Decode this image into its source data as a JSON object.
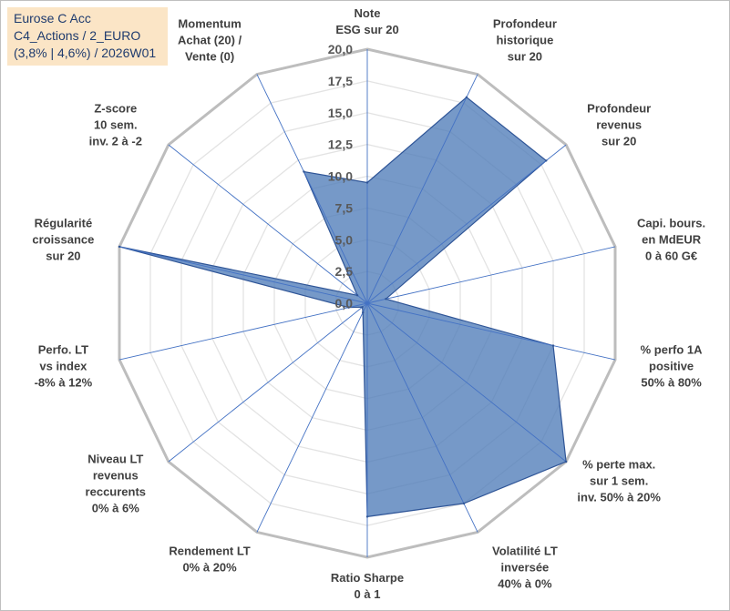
{
  "info_box": {
    "line1": "Eurose C Acc",
    "line2": "C4_Actions / 2_EURO",
    "line3": "(3,8% | 4,6%) / 2026W01"
  },
  "colors": {
    "series_fill": "#4f7cb8",
    "series_stroke": "#2f5597",
    "grid": "#c8c8c8",
    "spoke": "#4472c4",
    "info_box_bg": "#fbe5c6"
  },
  "chart_data": {
    "type": "radar",
    "title": "",
    "rmin": 0,
    "rmax": 20,
    "ticks": [
      "0,0",
      "2,5",
      "5,0",
      "7,5",
      "10,0",
      "12,5",
      "15,0",
      "17,5",
      "20,0"
    ],
    "axes": [
      {
        "label": [
          "Note",
          "ESG sur 20"
        ],
        "value": 9.5
      },
      {
        "label": [
          "Profondeur",
          "historique",
          "sur 20"
        ],
        "value": 18
      },
      {
        "label": [
          "Profondeur",
          "revenus",
          "sur 20"
        ],
        "value": 18
      },
      {
        "label": [
          "Capi. bours.",
          "en MdEUR",
          "0 à 60 G€"
        ],
        "value": 1.5
      },
      {
        "label": [
          "% perfo 1A",
          "positive",
          "50% à 80%"
        ],
        "value": 15
      },
      {
        "label": [
          "% perte max.",
          "sur 1 sem.",
          "inv. 50% à 20%"
        ],
        "value": 20
      },
      {
        "label": [
          "Volatilité LT",
          "inversée",
          "40% à 0%"
        ],
        "value": 17.5
      },
      {
        "label": [
          "Ratio Sharpe",
          "0 à 1"
        ],
        "value": 16.8
      },
      {
        "label": [
          "Rendement LT",
          "0% à 20%"
        ],
        "value": 0.8
      },
      {
        "label": [
          "Niveau LT",
          "revenus",
          "reccurents",
          "0% à 6%"
        ],
        "value": 0.5
      },
      {
        "label": [
          "Perfo. LT",
          "vs index",
          "-8% à 12%"
        ],
        "value": 1.5
      },
      {
        "label": [
          "Régularité",
          "croissance",
          "sur 20"
        ],
        "value": 20
      },
      {
        "label": [
          "Z-score",
          "10 sem.",
          "inv. 2 à -2"
        ],
        "value": 1
      },
      {
        "label": [
          "Momentum",
          "Achat (20) /",
          "Vente (0)"
        ],
        "value": 11.5
      }
    ],
    "series": [
      {
        "values": [
          9.5,
          18,
          18,
          1.5,
          15,
          20,
          17.5,
          16.8,
          0.8,
          0.5,
          1.5,
          20,
          1,
          11.5
        ]
      }
    ],
    "grid": true,
    "legend": "none"
  }
}
